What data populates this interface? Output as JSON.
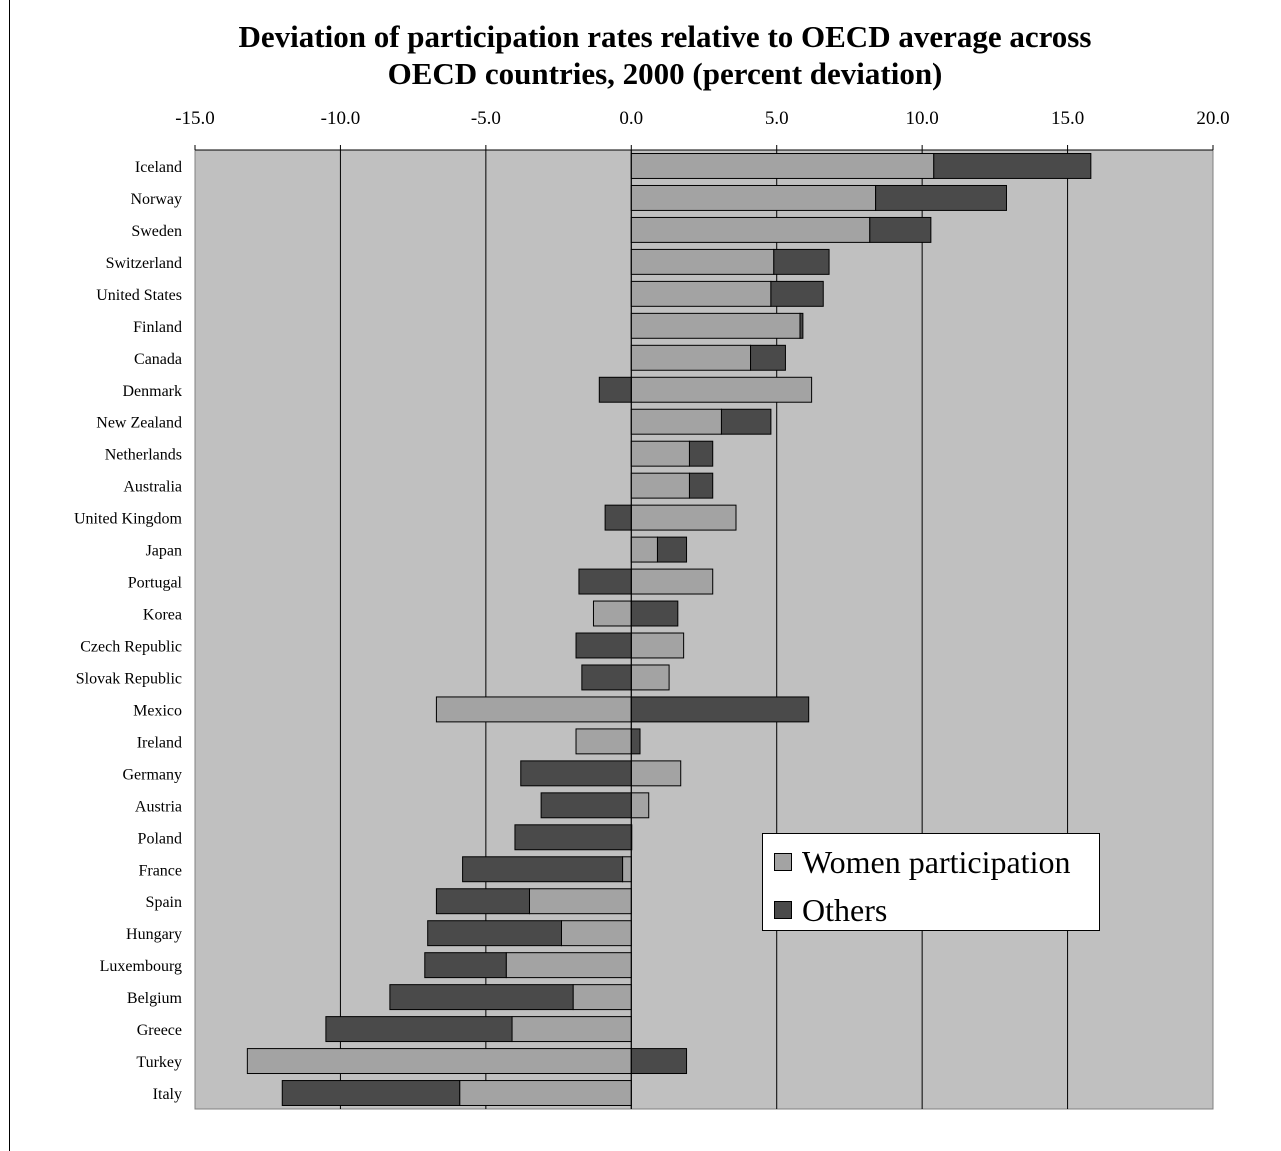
{
  "chart_data": {
    "type": "bar",
    "orientation": "horizontal",
    "stacked": true,
    "title": [
      "Deviation of participation rates relative to OECD average across",
      "OECD countries, 2000 (percent deviation)"
    ],
    "xlim": [
      -15,
      20
    ],
    "xticks": [
      -15,
      -10,
      -5,
      0,
      5,
      10,
      15,
      20
    ],
    "xtick_labels": [
      "-15.0",
      "-10.0",
      "-5.0",
      "0.0",
      "5.0",
      "10.0",
      "15.0",
      "20.0"
    ],
    "grid": true,
    "legend_position": "lower-right",
    "categories": [
      "Iceland",
      "Norway",
      "Sweden",
      "Switzerland",
      "United States",
      "Finland",
      "Canada",
      "Denmark",
      "New Zealand",
      "Netherlands",
      "Australia",
      "United Kingdom",
      "Japan",
      "Portugal",
      "Korea",
      "Czech Republic",
      "Slovak Republic",
      "Mexico",
      "Ireland",
      "Germany",
      "Austria",
      "Poland",
      "France",
      "Spain",
      "Hungary",
      "Luxembourg",
      "Belgium",
      "Greece",
      "Turkey",
      "Italy"
    ],
    "series": [
      {
        "name": "Women participation",
        "color": "#a3a3a3",
        "values": [
          10.4,
          8.4,
          8.2,
          4.9,
          4.8,
          5.8,
          4.1,
          6.2,
          3.1,
          2.0,
          2.0,
          3.6,
          0.9,
          2.8,
          -1.3,
          1.8,
          1.3,
          -6.7,
          -1.9,
          1.7,
          0.6,
          0.0,
          -0.3,
          -3.5,
          -2.4,
          -4.3,
          -2.0,
          -4.1,
          -13.2,
          -5.9
        ]
      },
      {
        "name": "Others",
        "color": "#4a4a4a",
        "values": [
          5.4,
          4.5,
          2.1,
          1.9,
          1.8,
          0.1,
          1.2,
          -1.1,
          1.7,
          0.8,
          0.8,
          -0.9,
          1.0,
          -1.8,
          1.6,
          -1.9,
          -1.7,
          6.1,
          0.3,
          -3.8,
          -3.1,
          -4.0,
          -5.5,
          -3.2,
          -4.6,
          -2.8,
          -6.3,
          -6.4,
          1.9,
          -6.1
        ]
      }
    ]
  },
  "legend": {
    "women_label": "Women participation",
    "others_label": "Others"
  },
  "colors": {
    "plot_background": "#c0c0c0",
    "women": "#a3a3a3",
    "others": "#4a4a4a"
  }
}
